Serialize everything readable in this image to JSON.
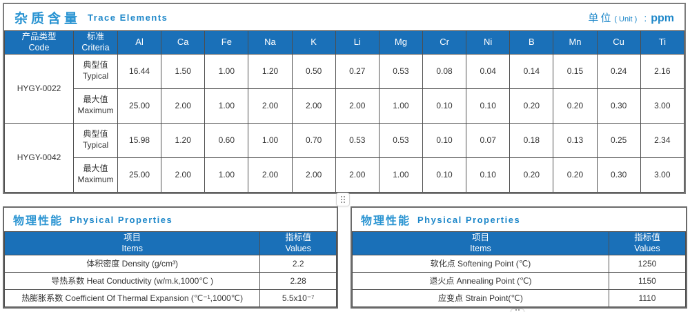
{
  "colors": {
    "header_blue": "#1a70b8",
    "accent_blue": "#2a94d2",
    "accent_blue_dark": "#1d87c9",
    "grid_line": "#4e4e4e",
    "text_dark": "#333333"
  },
  "trace": {
    "title_zh": "杂质含量",
    "title_en": "Trace Elements",
    "unit_zh": "单位",
    "unit_paren": "( Unit )",
    "unit_colon": ":",
    "unit_value": "ppm",
    "col_product": {
      "zh": "产品类型",
      "en": "Code"
    },
    "col_criteria": {
      "zh": "标准",
      "en": "Criteria"
    },
    "elements": [
      "Al",
      "Ca",
      "Fe",
      "Na",
      "K",
      "Li",
      "Mg",
      "Cr",
      "Ni",
      "B",
      "Mn",
      "Cu",
      "Ti"
    ],
    "products": [
      {
        "code": "HYGY-0022",
        "rows": [
          {
            "label_zh": "典型值",
            "label_en": "Typical",
            "values": [
              "16.44",
              "1.50",
              "1.00",
              "1.20",
              "0.50",
              "0.27",
              "0.53",
              "0.08",
              "0.04",
              "0.14",
              "0.15",
              "0.24",
              "2.16"
            ]
          },
          {
            "label_zh": "最大值",
            "label_en": "Maximum",
            "values": [
              "25.00",
              "2.00",
              "1.00",
              "2.00",
              "2.00",
              "2.00",
              "1.00",
              "0.10",
              "0.10",
              "0.20",
              "0.20",
              "0.30",
              "3.00"
            ]
          }
        ]
      },
      {
        "code": "HYGY-0042",
        "rows": [
          {
            "label_zh": "典型值",
            "label_en": "Typical",
            "values": [
              "15.98",
              "1.20",
              "0.60",
              "1.00",
              "0.70",
              "0.53",
              "0.53",
              "0.10",
              "0.07",
              "0.18",
              "0.13",
              "0.25",
              "2.34"
            ]
          },
          {
            "label_zh": "最大值",
            "label_en": "Maximum",
            "values": [
              "25.00",
              "2.00",
              "1.00",
              "2.00",
              "2.00",
              "2.00",
              "1.00",
              "0.10",
              "0.10",
              "0.20",
              "0.20",
              "0.30",
              "3.00"
            ]
          }
        ]
      }
    ]
  },
  "physical_left": {
    "title_zh": "物理性能",
    "title_en": "Physical Properties",
    "col_items": {
      "zh": "项目",
      "en": "Items"
    },
    "col_values": {
      "zh": "指标值",
      "en": "Values"
    },
    "rows": [
      {
        "item": "体积密度 Density (g/cm³)",
        "value": "2.2"
      },
      {
        "item": "导热系数 Heat Conductivity (w/m.k,1000℃ )",
        "value": "2.28"
      },
      {
        "item": "热膨胀系数 Coefficient Of Thermal Expansion (℃⁻¹,1000℃)",
        "value": "5.5x10⁻⁷"
      }
    ]
  },
  "physical_right": {
    "title_zh": "物理性能",
    "title_en": "Physical Properties",
    "col_items": {
      "zh": "项目",
      "en": "Items"
    },
    "col_values": {
      "zh": "指标值",
      "en": "Values"
    },
    "rows": [
      {
        "item": "软化点 Softening Point (℃)",
        "value": "1250"
      },
      {
        "item": "退火点 Annealing Point (℃)",
        "value": "1150"
      },
      {
        "item": "应变点 Strain Point(℃)",
        "value": "1110"
      }
    ]
  },
  "icons": {
    "divider_handle": "drag-dots-icon",
    "bottom_handle": "drag-dots-icon"
  }
}
